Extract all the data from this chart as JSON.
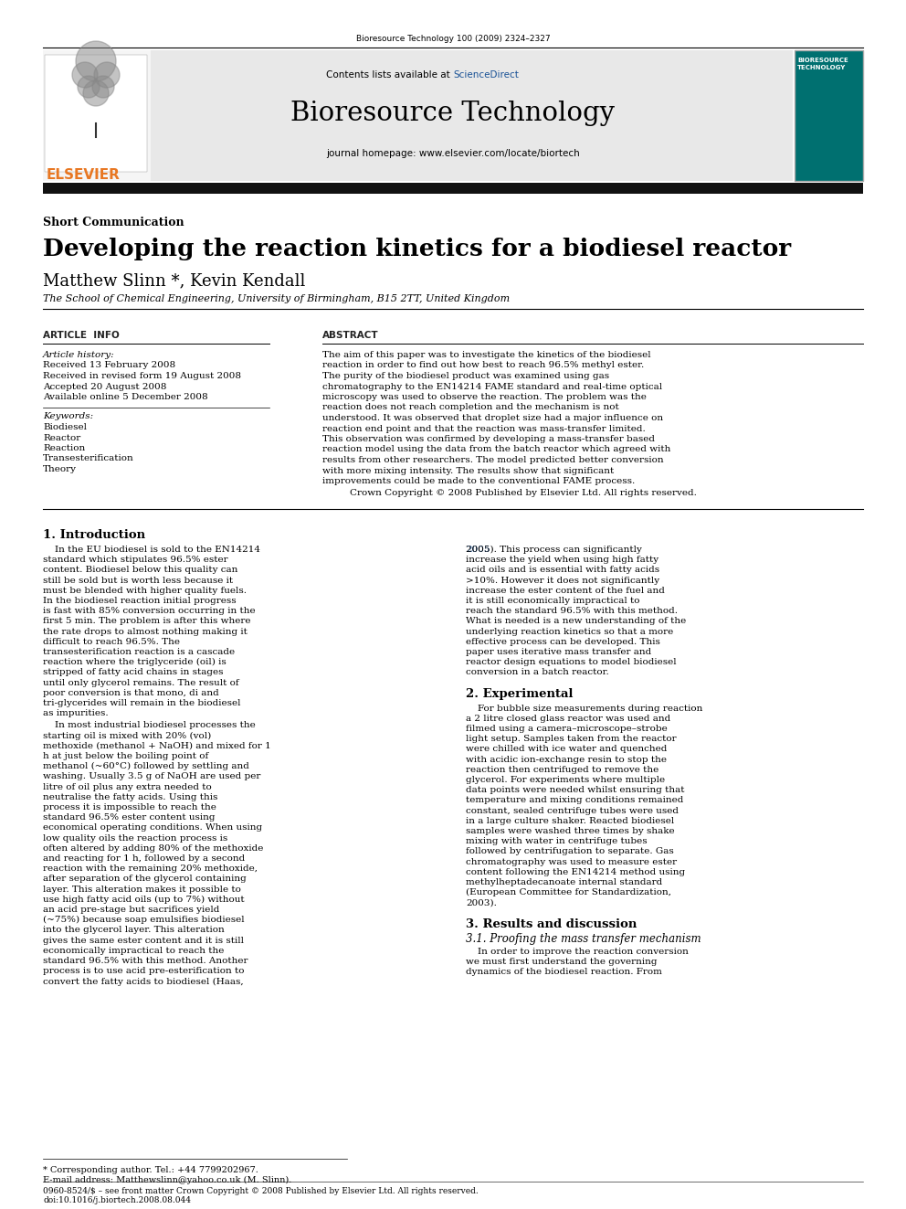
{
  "journal_ref": "Bioresource Technology 100 (2009) 2324–2327",
  "journal_title": "Bioresource Technology",
  "journal_homepage": "journal homepage: www.elsevier.com/locate/biortech",
  "contents_text": "Contents lists available at ",
  "sciencedirect_text": "ScienceDirect",
  "article_type": "Short Communication",
  "paper_title": "Developing the reaction kinetics for a biodiesel reactor",
  "authors": "Matthew Slinn *, Kevin Kendall",
  "affiliation": "The School of Chemical Engineering, University of Birmingham, B15 2TT, United Kingdom",
  "article_info_header": "ARTICLE  INFO",
  "abstract_header": "ABSTRACT",
  "article_history_label": "Article history:",
  "received1": "Received 13 February 2008",
  "received2": "Received in revised form 19 August 2008",
  "accepted": "Accepted 20 August 2008",
  "available": "Available online 5 December 2008",
  "keywords_label": "Keywords:",
  "keywords": [
    "Biodiesel",
    "Reactor",
    "Reaction",
    "Transesterification",
    "Theory"
  ],
  "abstract_text": "The aim of this paper was to investigate the kinetics of the biodiesel reaction in order to find out how best to reach 96.5% methyl ester. The purity of the biodiesel product was examined using gas chromatography to the EN14214 FAME standard and real-time optical microscopy was used to observe the reaction. The problem was the reaction does not reach completion and the mechanism is not understood. It was observed that droplet size had a major influence on reaction end point and that the reaction was mass-transfer limited. This observation was confirmed by developing a mass-transfer based reaction model using the data from the batch reactor which agreed with results from other researchers. The model predicted better conversion with more mixing intensity. The results show that significant improvements could be made to the conventional FAME process.",
  "copyright_line": "Crown Copyright © 2008 Published by Elsevier Ltd. All rights reserved.",
  "section1_title": "1. Introduction",
  "s1p1": "In the EU biodiesel is sold to the EN14214 standard which stipulates 96.5% ester content. Biodiesel below this quality can still be sold but is worth less because it must be blended with higher quality fuels. In the biodiesel reaction initial progress is fast with 85% conversion occurring in the first 5 min. The problem is after this where the rate drops to almost nothing making it difficult to reach 96.5%. The transesterification reaction is a cascade reaction where the triglyceride (oil) is stripped of fatty acid chains in stages until only glycerol remains. The result of poor conversion is that mono, di and tri-glycerides will remain in the biodiesel as impurities.",
  "s1p2": "In most industrial biodiesel processes the starting oil is mixed with 20% (vol) methoxide (methanol + NaOH) and mixed for 1 h at just below the boiling point of methanol (~60°C) followed by settling and washing. Usually 3.5 g of NaOH are used per litre of oil plus any extra needed to neutralise the fatty acids. Using this process it is impossible to reach the standard 96.5% ester content using economical operating conditions. When using low quality oils the reaction process is often altered by adding 80% of the methoxide and reacting for 1 h, followed by a second reaction with the remaining 20% methoxide, after separation of the glycerol containing layer. This alteration makes it possible to use high fatty acid oils (up to 7%) without an acid pre-stage but sacrifices yield (~75%) because soap emulsifies biodiesel into the glycerol layer. This alteration gives the same ester content and it is still economically impractical to reach the standard 96.5% with this method. Another process is to use acid pre-esterification to convert the fatty acids to biodiesel (Haas,",
  "s1c2_ref": "2005",
  "s1c2_rest": "). This process can significantly increase the yield when using high fatty acid oils and is essential with fatty acids >10%. However it does not significantly increase the ester content of the fuel and it is still economically impractical to reach the standard 96.5% with this method. What is needed is a new understanding of the underlying reaction kinetics so that a more effective process can be developed. This paper uses iterative mass transfer and reactor design equations to model biodiesel conversion in a batch reactor.",
  "section2_title": "2. Experimental",
  "s2p1": "For bubble size measurements during reaction a 2 litre closed glass reactor was used and filmed using a camera–microscope–strobe light setup. Samples taken from the reactor were chilled with ice water and quenched with acidic ion-exchange resin to stop the reaction then centrifuged to remove the glycerol. For experiments where multiple data points were needed whilst ensuring that temperature and mixing conditions remained constant, sealed centrifuge tubes were used in a large culture shaker. Reacted biodiesel samples were washed three times by shake mixing with water in centrifuge tubes followed by centrifugation to separate. Gas chromatography was used to measure ester content following the EN14214 method using methylheptadecanoate internal standard (European Committee for Standardization, 2003).",
  "section3_title": "3. Results and discussion",
  "section31_title": "3.1. Proofing the mass transfer mechanism",
  "s3p1_start": "In order to improve the reaction conversion we must first understand the governing dynamics of the biodiesel reaction. From",
  "footer_star": "* Corresponding author. Tel.: +44 7799202967.",
  "footer_email": "E-mail address: Matthewslinn@yahoo.co.uk (M. Slinn).",
  "footer_issn": "0960-8524/$ – see front matter Crown Copyright © 2008 Published by Elsevier Ltd. All rights reserved.",
  "footer_doi": "doi:10.1016/j.biortech.2008.08.044",
  "cover_lines": [
    "BIORESOURCE",
    "TECHNOLOGY"
  ],
  "bg_color": "#ffffff",
  "gray_header_bg": "#e8e8e8",
  "black_bar": "#111111",
  "elsevier_orange": "#e87722",
  "sd_blue": "#1a5296",
  "cover_teal": "#007070",
  "ref_blue": "#1a5296",
  "euro_blue": "#1a5296"
}
